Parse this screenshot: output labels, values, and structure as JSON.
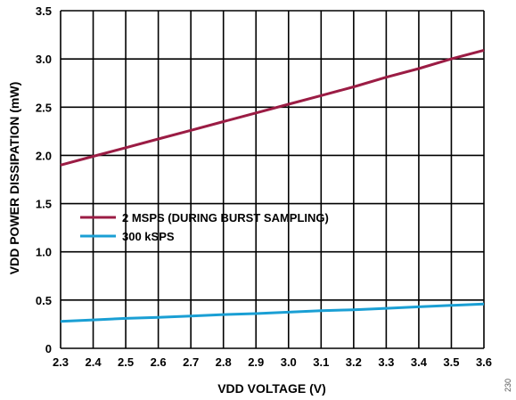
{
  "chart_data": {
    "type": "line",
    "xlabel": "VDD VOLTAGE (V)",
    "ylabel": "VDD POWER DISSIPATION (mW)",
    "xlim": [
      2.3,
      3.6
    ],
    "ylim": [
      0,
      3.5
    ],
    "x_ticks": [
      "2.3",
      "2.4",
      "2.5",
      "2.6",
      "2.7",
      "2.8",
      "2.9",
      "3.0",
      "3.1",
      "3.2",
      "3.3",
      "3.4",
      "3.5",
      "3.6"
    ],
    "y_ticks": [
      "0",
      "0.5",
      "1.0",
      "1.5",
      "2.0",
      "2.5",
      "3.0",
      "3.5"
    ],
    "grid": true,
    "legend_position": "middle-left",
    "series": [
      {
        "name": "2 MSPS (DURING BURST SAMPLING)",
        "color": "#9b1c44",
        "x": [
          2.3,
          2.4,
          2.5,
          2.6,
          2.7,
          2.8,
          2.9,
          3.0,
          3.1,
          3.2,
          3.3,
          3.4,
          3.5,
          3.6
        ],
        "y": [
          1.9,
          1.99,
          2.08,
          2.17,
          2.26,
          2.35,
          2.44,
          2.53,
          2.62,
          2.71,
          2.81,
          2.9,
          3.0,
          3.09
        ]
      },
      {
        "name": "300 kSPS",
        "color": "#1a9fd4",
        "x": [
          2.3,
          2.4,
          2.5,
          2.6,
          2.7,
          2.8,
          2.9,
          3.0,
          3.1,
          3.2,
          3.3,
          3.4,
          3.5,
          3.6
        ],
        "y": [
          0.28,
          0.295,
          0.31,
          0.32,
          0.335,
          0.35,
          0.36,
          0.375,
          0.39,
          0.4,
          0.415,
          0.43,
          0.445,
          0.46
        ]
      }
    ]
  },
  "figure_number": "230"
}
